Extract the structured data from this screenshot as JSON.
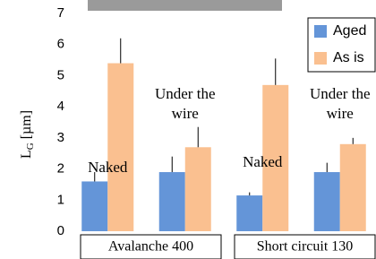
{
  "chart_data": {
    "type": "bar",
    "ylabel": {
      "main": "L",
      "sub": "G",
      "unit": "[µm]"
    },
    "categories": [
      "Naked",
      "Under the wire",
      "Naked",
      "Under the wire"
    ],
    "groups": [
      "Avalanche 400",
      "Short circuit 130"
    ],
    "series": [
      {
        "name": "Aged",
        "color": "#6495d8",
        "values": [
          1.6,
          1.9,
          1.15,
          1.9
        ],
        "errors": [
          0.3,
          0.5,
          0.1,
          0.3
        ]
      },
      {
        "name": "As is",
        "color": "#fac090",
        "values": [
          5.4,
          2.7,
          4.7,
          2.8
        ],
        "errors": [
          0.8,
          0.65,
          0.85,
          0.2
        ]
      }
    ],
    "ylim": [
      0,
      7
    ],
    "yticks": [
      0,
      1,
      2,
      3,
      4,
      5,
      6,
      7
    ],
    "legend": "top-right"
  }
}
